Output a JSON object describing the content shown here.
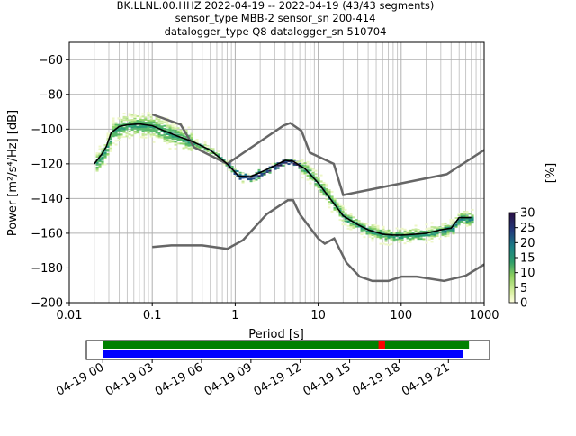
{
  "title": {
    "line1": "BK.LLNL.00.HHZ   2022-04-19 -- 2022-04-19  (43/43 segments)",
    "line2": "sensor_type MBB-2 sensor_sn 200-414",
    "line3": "datalogger_type Q8 datalogger_sn 510704"
  },
  "chart_data": [
    {
      "type": "heatmap",
      "title": "",
      "xlabel": "Period [s]",
      "ylabel": "Power [m²/s⁴/Hz] [dB]",
      "xscale": "log",
      "xlim": [
        0.01,
        1000
      ],
      "ylim": [
        -200,
        -50
      ],
      "x_ticks": [
        "0.01",
        "0.1",
        "1",
        "10",
        "100",
        "1000"
      ],
      "y_ticks": [
        "−200",
        "−180",
        "−160",
        "−140",
        "−120",
        "−100",
        "−80",
        "−60"
      ],
      "y_tick_values": [
        -200,
        -180,
        -160,
        -140,
        -120,
        -100,
        -80,
        -60
      ],
      "grid": true,
      "colorbar": {
        "label": "[%]",
        "ticks": [
          "0",
          "5",
          "10",
          "15",
          "20",
          "25",
          "30"
        ],
        "range": [
          0,
          30
        ],
        "colormap": "cubehelix_r-like",
        "position": "right"
      },
      "series": [
        {
          "role": "mode",
          "color": "#000000",
          "x": [
            0.02,
            0.025,
            0.028,
            0.032,
            0.04,
            0.05,
            0.07,
            0.1,
            0.14,
            0.2,
            0.3,
            0.5,
            0.8,
            1.1,
            1.5,
            2,
            3,
            4,
            5,
            7,
            10,
            15,
            20,
            30,
            40,
            60,
            80,
            100,
            150,
            200,
            300,
            400,
            500,
            700
          ],
          "y": [
            -120,
            -114,
            -110,
            -102,
            -98.5,
            -97.5,
            -97,
            -98,
            -101,
            -104,
            -107,
            -112,
            -120,
            -127,
            -127.5,
            -125,
            -121,
            -118,
            -118.5,
            -123,
            -131,
            -142,
            -150,
            -155,
            -158,
            -160.5,
            -161,
            -161,
            -160.5,
            -160,
            -158,
            -157,
            -151,
            -151
          ]
        },
        {
          "role": "NHNM",
          "color": "#666666",
          "x": [
            0.1,
            0.17,
            0.4,
            0.8,
            1.24,
            2.4,
            4.3,
            5,
            6,
            10,
            12,
            15.6,
            21.9,
            31.6,
            45,
            70,
            101,
            154,
            328,
            600,
            1000
          ],
          "y": [
            -168,
            -167,
            -167,
            -169,
            -164,
            -149,
            -141,
            -141,
            -149,
            -163,
            -166,
            -163,
            -177,
            -185,
            -187.5,
            -187.5,
            -185,
            -185,
            -187.5,
            -184.5,
            -178
          ]
        },
        {
          "role": "NLNM",
          "color": "#666666",
          "x": [
            0.1,
            0.22,
            0.32,
            0.8,
            3.8,
            4.6,
            6.3,
            7.9,
            15.4,
            20,
            354.8,
            1000
          ],
          "y": [
            -91.5,
            -97.4,
            -110.5,
            -120,
            -98,
            -96.5,
            -101,
            -113.5,
            -120,
            -138,
            -126,
            -112
          ]
        }
      ]
    },
    {
      "type": "timeline",
      "x_ticks": [
        "04-19 00",
        "04-19 03",
        "04-19 06",
        "04-19 09",
        "04-19 12",
        "04-19 15",
        "04-19 18",
        "04-19 21"
      ],
      "xlim_hours": [
        -1.0,
        23.5
      ],
      "bars": [
        {
          "name": "used-data",
          "color": "#008000",
          "start_hours": 0,
          "end_hours": 22.25
        },
        {
          "name": "gap-marker",
          "color": "#ff0000",
          "start_hours": 16.75,
          "end_hours": 17.15
        },
        {
          "name": "available-data",
          "color": "#0000ff",
          "start_hours": 0,
          "end_hours": 21.9
        }
      ]
    }
  ]
}
